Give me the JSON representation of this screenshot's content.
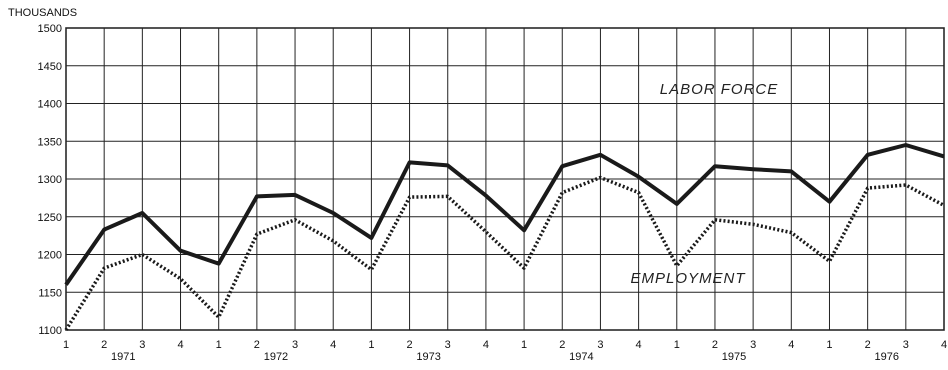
{
  "chart_data": {
    "type": "line",
    "unit_label": "THOUSANDS",
    "ylim": [
      1100,
      1500
    ],
    "y_ticks": [
      1100,
      1150,
      1200,
      1250,
      1300,
      1350,
      1400,
      1450,
      1500
    ],
    "grid": true,
    "quarter_labels": [
      "1",
      "2",
      "3",
      "4",
      "1",
      "2",
      "3",
      "4",
      "1",
      "2",
      "3",
      "4",
      "1",
      "2",
      "3",
      "4",
      "1",
      "2",
      "3",
      "4",
      "1",
      "2",
      "3",
      "4"
    ],
    "years": [
      "1971",
      "1972",
      "1973",
      "1974",
      "1975",
      "1976"
    ],
    "series": [
      {
        "name": "LABOR FORCE",
        "style": "solid",
        "values": [
          1160,
          1233,
          1255,
          1205,
          1188,
          1277,
          1279,
          1255,
          1222,
          1322,
          1318,
          1278,
          1232,
          1317,
          1332,
          1303,
          1267,
          1317,
          1313,
          1310,
          1270,
          1332,
          1345,
          1330
        ]
      },
      {
        "name": "EMPLOYMENT",
        "style": "dotted",
        "values": [
          1100,
          1182,
          1200,
          1168,
          1117,
          1227,
          1246,
          1218,
          1180,
          1276,
          1277,
          1230,
          1182,
          1282,
          1302,
          1282,
          1185,
          1246,
          1240,
          1229,
          1191,
          1288,
          1292,
          1265
        ]
      }
    ]
  }
}
